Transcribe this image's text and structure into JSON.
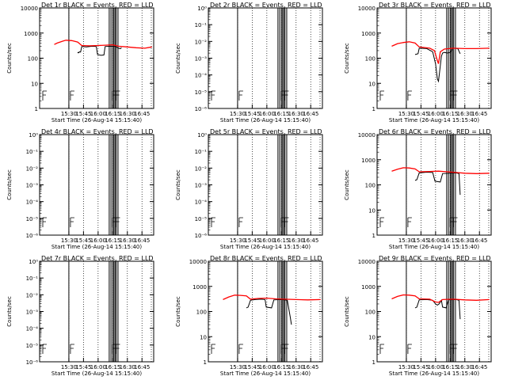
{
  "colors": {
    "events": "#000000",
    "lld": "#ff0000",
    "background": "#ffffff"
  },
  "chart_data": [
    {
      "type": "line",
      "title": "Det 1r BLACK = Events, RED = LLD",
      "xlabel": "Start Time (26-Aug-14 15:15:40)",
      "ylabel": "Counts/sec",
      "scale": "log",
      "ylim": [
        1,
        10000
      ],
      "yticks": [
        "1",
        "10",
        "100",
        "1000",
        "10000"
      ],
      "xticks": [
        "15:30",
        "15:45",
        "16:00",
        "16:15",
        "16:30",
        "16:45"
      ],
      "series": [
        {
          "color": "#000000",
          "points": [
            [
              15.65,
              160
            ],
            [
              15.66,
              170
            ],
            [
              15.67,
              165
            ],
            [
              15.68,
              180
            ],
            [
              15.7,
              175
            ],
            [
              15.72,
              290
            ],
            [
              15.8,
              280
            ],
            [
              15.9,
              300
            ],
            [
              15.97,
              290
            ],
            [
              15.99,
              140
            ],
            [
              16.05,
              130
            ],
            [
              16.1,
              135
            ],
            [
              16.12,
              290
            ],
            [
              16.2,
              300
            ],
            [
              16.3,
              290
            ],
            [
              16.35,
              250
            ],
            [
              16.38,
              240
            ],
            [
              16.4,
              260
            ]
          ]
        },
        {
          "color": "#ff0000",
          "points": [
            [
              15.25,
              350
            ],
            [
              15.3,
              400
            ],
            [
              15.4,
              480
            ],
            [
              15.45,
              520
            ],
            [
              15.55,
              500
            ],
            [
              15.65,
              440
            ],
            [
              15.72,
              320
            ],
            [
              15.85,
              310
            ],
            [
              16.0,
              320
            ],
            [
              16.15,
              330
            ],
            [
              16.25,
              340
            ],
            [
              16.35,
              300
            ],
            [
              16.5,
              280
            ],
            [
              16.65,
              260
            ],
            [
              16.8,
              250
            ],
            [
              16.92,
              280
            ]
          ]
        }
      ]
    },
    {
      "type": "line",
      "title": "Det 2r BLACK = Events, RED = LLD",
      "xlabel": "Start Time (26-Aug-14 15:15:40)",
      "ylabel": "Counts/sec",
      "scale": "log",
      "ylim": [
        1e-06,
        1
      ],
      "yticks": [
        "10⁻⁶",
        "10⁻⁵",
        "10⁻⁴",
        "10⁻³",
        "10⁻²",
        "10⁻¹",
        "10⁰"
      ],
      "xticks": [
        "15:30",
        "15:45",
        "16:00",
        "16:15",
        "16:30",
        "16:45"
      ],
      "series": []
    },
    {
      "type": "line",
      "title": "Det 3r BLACK = Events, RED = LLD",
      "xlabel": "Start Time (26-Aug-14 15:15:40)",
      "ylabel": "Counts/sec",
      "scale": "log",
      "ylim": [
        1,
        10000
      ],
      "yticks": [
        "1",
        "10",
        "100",
        "1000",
        "10000"
      ],
      "xticks": [
        "15:30",
        "15:45",
        "16:00",
        "16:15",
        "16:30",
        "16:45"
      ],
      "series": [
        {
          "color": "#000000",
          "points": [
            [
              15.65,
              140
            ],
            [
              15.7,
              150
            ],
            [
              15.72,
              250
            ],
            [
              15.85,
              240
            ],
            [
              15.95,
              180
            ],
            [
              16.0,
              60
            ],
            [
              16.03,
              15
            ],
            [
              16.05,
              12
            ],
            [
              16.07,
              30
            ],
            [
              16.1,
              120
            ],
            [
              16.12,
              160
            ],
            [
              16.15,
              170
            ],
            [
              16.2,
              160
            ],
            [
              16.25,
              170
            ],
            [
              16.3,
              250
            ],
            [
              16.38,
              240
            ],
            [
              16.42,
              150
            ]
          ]
        },
        {
          "color": "#ff0000",
          "points": [
            [
              15.25,
              300
            ],
            [
              15.35,
              380
            ],
            [
              15.45,
              420
            ],
            [
              15.55,
              450
            ],
            [
              15.65,
              400
            ],
            [
              15.72,
              280
            ],
            [
              15.9,
              250
            ],
            [
              15.98,
              200
            ],
            [
              16.03,
              80
            ],
            [
              16.05,
              60
            ],
            [
              16.08,
              180
            ],
            [
              16.15,
              230
            ],
            [
              16.3,
              250
            ],
            [
              16.5,
              240
            ],
            [
              16.7,
              240
            ],
            [
              16.92,
              250
            ]
          ]
        }
      ]
    },
    {
      "type": "line",
      "title": "Det 4r BLACK = Events, RED = LLD",
      "xlabel": "Start Time (26-Aug-14 15:15:40)",
      "ylabel": "Counts/sec",
      "scale": "log",
      "ylim": [
        1e-06,
        1
      ],
      "yticks": [
        "10⁻⁶",
        "10⁻⁵",
        "10⁻⁴",
        "10⁻³",
        "10⁻²",
        "10⁻¹",
        "10⁰"
      ],
      "xticks": [
        "15:30",
        "15:45",
        "16:00",
        "16:15",
        "16:30",
        "16:45"
      ],
      "series": []
    },
    {
      "type": "line",
      "title": "Det 5r BLACK = Events, RED = LLD",
      "xlabel": "Start Time (26-Aug-14 15:15:40)",
      "ylabel": "Counts/sec",
      "scale": "log",
      "ylim": [
        1e-06,
        1
      ],
      "yticks": [
        "10⁻⁶",
        "10⁻⁵",
        "10⁻⁴",
        "10⁻³",
        "10⁻²",
        "10⁻¹",
        "10⁰"
      ],
      "xticks": [
        "15:30",
        "15:45",
        "16:00",
        "16:15",
        "16:30",
        "16:45"
      ],
      "series": []
    },
    {
      "type": "line",
      "title": "Det 6r BLACK = Events, RED = LLD",
      "xlabel": "Start Time (26-Aug-14 15:15:40)",
      "ylabel": "Counts/sec",
      "scale": "log",
      "ylim": [
        1,
        10000
      ],
      "yticks": [
        "1",
        "10",
        "100",
        "1000",
        "10000"
      ],
      "xticks": [
        "15:30",
        "15:45",
        "16:00",
        "16:15",
        "16:30",
        "16:45"
      ],
      "series": [
        {
          "color": "#000000",
          "points": [
            [
              15.65,
              150
            ],
            [
              15.68,
              160
            ],
            [
              15.72,
              300
            ],
            [
              15.85,
              320
            ],
            [
              15.95,
              310
            ],
            [
              15.99,
              140
            ],
            [
              16.08,
              130
            ],
            [
              16.12,
              280
            ],
            [
              16.25,
              290
            ],
            [
              16.35,
              300
            ],
            [
              16.4,
              280
            ],
            [
              16.42,
              40
            ]
          ]
        },
        {
          "color": "#ff0000",
          "points": [
            [
              15.25,
              350
            ],
            [
              15.35,
              420
            ],
            [
              15.45,
              480
            ],
            [
              15.55,
              470
            ],
            [
              15.65,
              430
            ],
            [
              15.72,
              330
            ],
            [
              15.9,
              340
            ],
            [
              16.05,
              350
            ],
            [
              16.2,
              330
            ],
            [
              16.35,
              310
            ],
            [
              16.5,
              290
            ],
            [
              16.7,
              280
            ],
            [
              16.92,
              290
            ]
          ]
        }
      ]
    },
    {
      "type": "line",
      "title": "Det 7r BLACK = Events, RED = LLD",
      "xlabel": "Start Time (26-Aug-14 15:15:40)",
      "ylabel": "Counts/sec",
      "scale": "log",
      "ylim": [
        1e-06,
        1
      ],
      "yticks": [
        "10⁻⁶",
        "10⁻⁵",
        "10⁻⁴",
        "10⁻³",
        "10⁻²",
        "10⁻¹",
        "10⁰"
      ],
      "xticks": [
        "15:30",
        "15:45",
        "16:00",
        "16:15",
        "16:30",
        "16:45"
      ],
      "series": []
    },
    {
      "type": "line",
      "title": "Det 8r BLACK = Events, RED = LLD",
      "xlabel": "Start Time (26-Aug-14 15:15:40)",
      "ylabel": "Counts/sec",
      "scale": "log",
      "ylim": [
        1,
        10000
      ],
      "yticks": [
        "1",
        "10",
        "100",
        "1000",
        "10000"
      ],
      "xticks": [
        "15:30",
        "15:45",
        "16:00",
        "16:15",
        "16:30",
        "16:45"
      ],
      "series": [
        {
          "color": "#000000",
          "points": [
            [
              15.65,
              140
            ],
            [
              15.68,
              150
            ],
            [
              15.72,
              280
            ],
            [
              15.8,
              300
            ],
            [
              15.9,
              310
            ],
            [
              15.97,
              300
            ],
            [
              15.99,
              150
            ],
            [
              16.08,
              140
            ],
            [
              16.12,
              290
            ],
            [
              16.25,
              300
            ],
            [
              16.35,
              280
            ],
            [
              16.4,
              60
            ],
            [
              16.42,
              30
            ]
          ]
        },
        {
          "color": "#ff0000",
          "points": [
            [
              15.25,
              300
            ],
            [
              15.35,
              380
            ],
            [
              15.45,
              450
            ],
            [
              15.55,
              440
            ],
            [
              15.65,
              420
            ],
            [
              15.72,
              310
            ],
            [
              15.85,
              330
            ],
            [
              16.0,
              340
            ],
            [
              16.15,
              320
            ],
            [
              16.3,
              310
            ],
            [
              16.5,
              300
            ],
            [
              16.7,
              290
            ],
            [
              16.92,
              300
            ]
          ]
        }
      ]
    },
    {
      "type": "line",
      "title": "Det 9r BLACK = Events, RED = LLD",
      "xlabel": "Start Time (26-Aug-14 15:15:40)",
      "ylabel": "Counts/sec",
      "scale": "log",
      "ylim": [
        1,
        10000
      ],
      "yticks": [
        "1",
        "10",
        "100",
        "1000",
        "10000"
      ],
      "xticks": [
        "15:30",
        "15:45",
        "16:00",
        "16:15",
        "16:30",
        "16:45"
      ],
      "series": [
        {
          "color": "#000000",
          "points": [
            [
              15.65,
              140
            ],
            [
              15.68,
              150
            ],
            [
              15.72,
              290
            ],
            [
              15.85,
              300
            ],
            [
              15.95,
              280
            ],
            [
              16.0,
              200
            ],
            [
              16.03,
              180
            ],
            [
              16.06,
              200
            ],
            [
              16.1,
              280
            ],
            [
              16.12,
              150
            ],
            [
              16.18,
              140
            ],
            [
              16.22,
              290
            ],
            [
              16.35,
              300
            ],
            [
              16.4,
              280
            ],
            [
              16.42,
              50
            ]
          ]
        },
        {
          "color": "#ff0000",
          "points": [
            [
              15.25,
              320
            ],
            [
              15.35,
              400
            ],
            [
              15.45,
              460
            ],
            [
              15.55,
              450
            ],
            [
              15.65,
              420
            ],
            [
              15.72,
              320
            ],
            [
              15.9,
              310
            ],
            [
              16.0,
              240
            ],
            [
              16.05,
              230
            ],
            [
              16.12,
              300
            ],
            [
              16.3,
              310
            ],
            [
              16.5,
              290
            ],
            [
              16.7,
              280
            ],
            [
              16.92,
              300
            ]
          ]
        }
      ]
    }
  ]
}
